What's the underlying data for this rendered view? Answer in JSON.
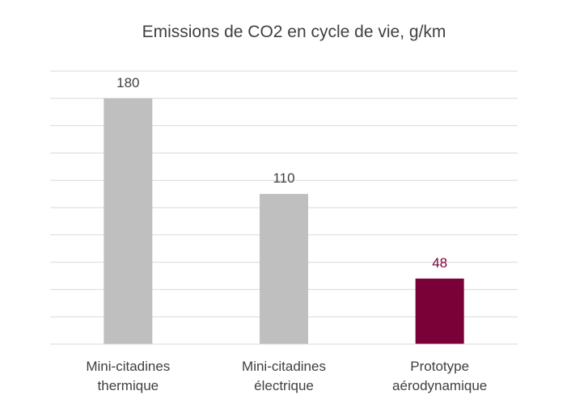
{
  "chart_data": {
    "type": "bar",
    "title": "Emissions de CO2 en cycle de vie, g/km",
    "categories": [
      [
        "Mini-citadines",
        "thermique"
      ],
      [
        "Mini-citadines",
        "électrique"
      ],
      [
        "Prototype",
        "aérodynamique"
      ]
    ],
    "values": [
      180,
      110,
      48
    ],
    "data_labels": [
      "180",
      "110",
      "48"
    ],
    "bar_colors": [
      "#bfbfbf",
      "#bfbfbf",
      "#7a0038"
    ],
    "label_colors": [
      "#404040",
      "#404040",
      "#7a0038"
    ],
    "gridline_color": "#d9d9d9",
    "ylim": [
      0,
      200
    ],
    "grid": true,
    "legend": "none",
    "xlabel": "",
    "ylabel": ""
  }
}
